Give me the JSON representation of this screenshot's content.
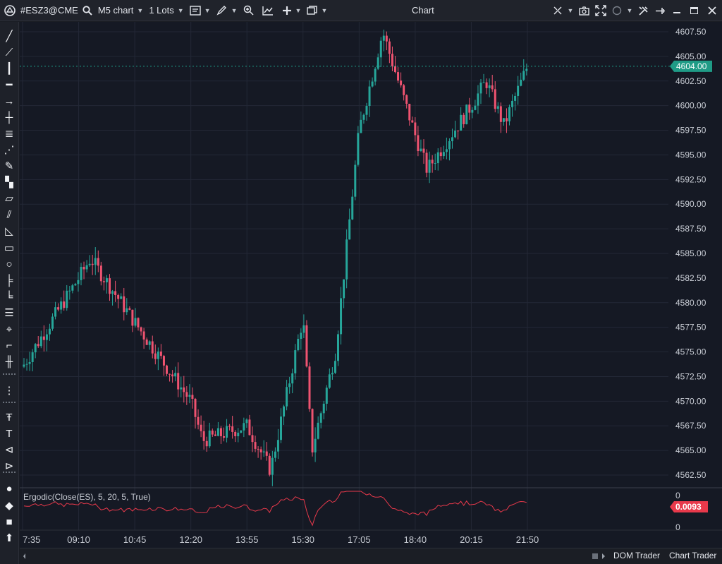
{
  "toolbar": {
    "symbol": "#ESZ3@CME",
    "chart_type": "M5 chart",
    "lots": "1 Lots",
    "window_title": "Chart"
  },
  "left_tools": [
    "line-tool-icon",
    "fib-tool-icon",
    "vertical-line-icon",
    "horizontal-line-icon",
    "arrow-icon",
    "crosshair-icon",
    "parallel-lines-icon",
    "polyline-icon",
    "pencil-icon",
    "paint-roller-icon",
    "ruler-icon",
    "channel-icon",
    "triangle-icon",
    "rectangle-icon",
    "ellipse-icon",
    "fib-retracement-icon",
    "fib-extension-icon",
    "fib-levels-icon",
    "gann-icon",
    "step-line-icon",
    "volume-profile-icon",
    "drag-handle-icon",
    "text-lock-icon",
    "text-icon",
    "label-icon",
    "tag-icon",
    "circle-marker-icon",
    "diamond-marker-icon",
    "square-marker-icon",
    "arrow-up-marker-icon"
  ],
  "indicator": {
    "label": "Ergodic(Close(ES), 5, 20, 5, True)",
    "value": "0.0093",
    "axis_top": "0",
    "axis_bottom": "0"
  },
  "price_axis": {
    "labels": [
      "4607.50",
      "4605.00",
      "4602.50",
      "4600.00",
      "4597.50",
      "4595.00",
      "4592.50",
      "4590.00",
      "4587.50",
      "4585.00",
      "4582.50",
      "4580.00",
      "4577.50",
      "4575.00",
      "4572.50",
      "4570.00",
      "4567.50",
      "4565.00",
      "4562.50"
    ],
    "current_price": "4604.00"
  },
  "time_axis": {
    "labels": [
      "7:35",
      "09:10",
      "10:45",
      "12:20",
      "13:55",
      "15:30",
      "17:05",
      "18:40",
      "20:15",
      "21:50"
    ]
  },
  "statusbar": {
    "dom_trader": "DOM Trader",
    "chart_trader": "Chart Trader"
  },
  "colors": {
    "up": "#26a69a",
    "down": "#ef5370",
    "background": "#151924",
    "indicator_line": "#e8394b",
    "price_tag": "#1f9b86"
  },
  "chart_data": {
    "type": "candlestick",
    "symbol": "#ESZ3@CME",
    "interval": "M5",
    "ylim": [
      4562.5,
      4607.5
    ],
    "key_levels": [
      {
        "time": "7:35",
        "price": 4573.5
      },
      {
        "time": "09:10",
        "price": 4582.5
      },
      {
        "time": "09:30",
        "price": 4584.5
      },
      {
        "time": "10:45",
        "price": 4578.0
      },
      {
        "time": "12:20",
        "price": 4570.0
      },
      {
        "time": "12:40",
        "price": 4566.0
      },
      {
        "time": "13:55",
        "price": 4567.5
      },
      {
        "time": "14:35",
        "price": 4563.0
      },
      {
        "time": "15:30",
        "price": 4578.5
      },
      {
        "time": "15:45",
        "price": 4565.0
      },
      {
        "time": "16:25",
        "price": 4575.0
      },
      {
        "time": "17:05",
        "price": 4597.5
      },
      {
        "time": "17:45",
        "price": 4607.5
      },
      {
        "time": "18:40",
        "price": 4597.0
      },
      {
        "time": "19:00",
        "price": 4593.5
      },
      {
        "time": "20:15",
        "price": 4600.0
      },
      {
        "time": "20:40",
        "price": 4602.5
      },
      {
        "time": "21:10",
        "price": 4598.0
      },
      {
        "time": "21:50",
        "price": 4604.0
      }
    ]
  }
}
